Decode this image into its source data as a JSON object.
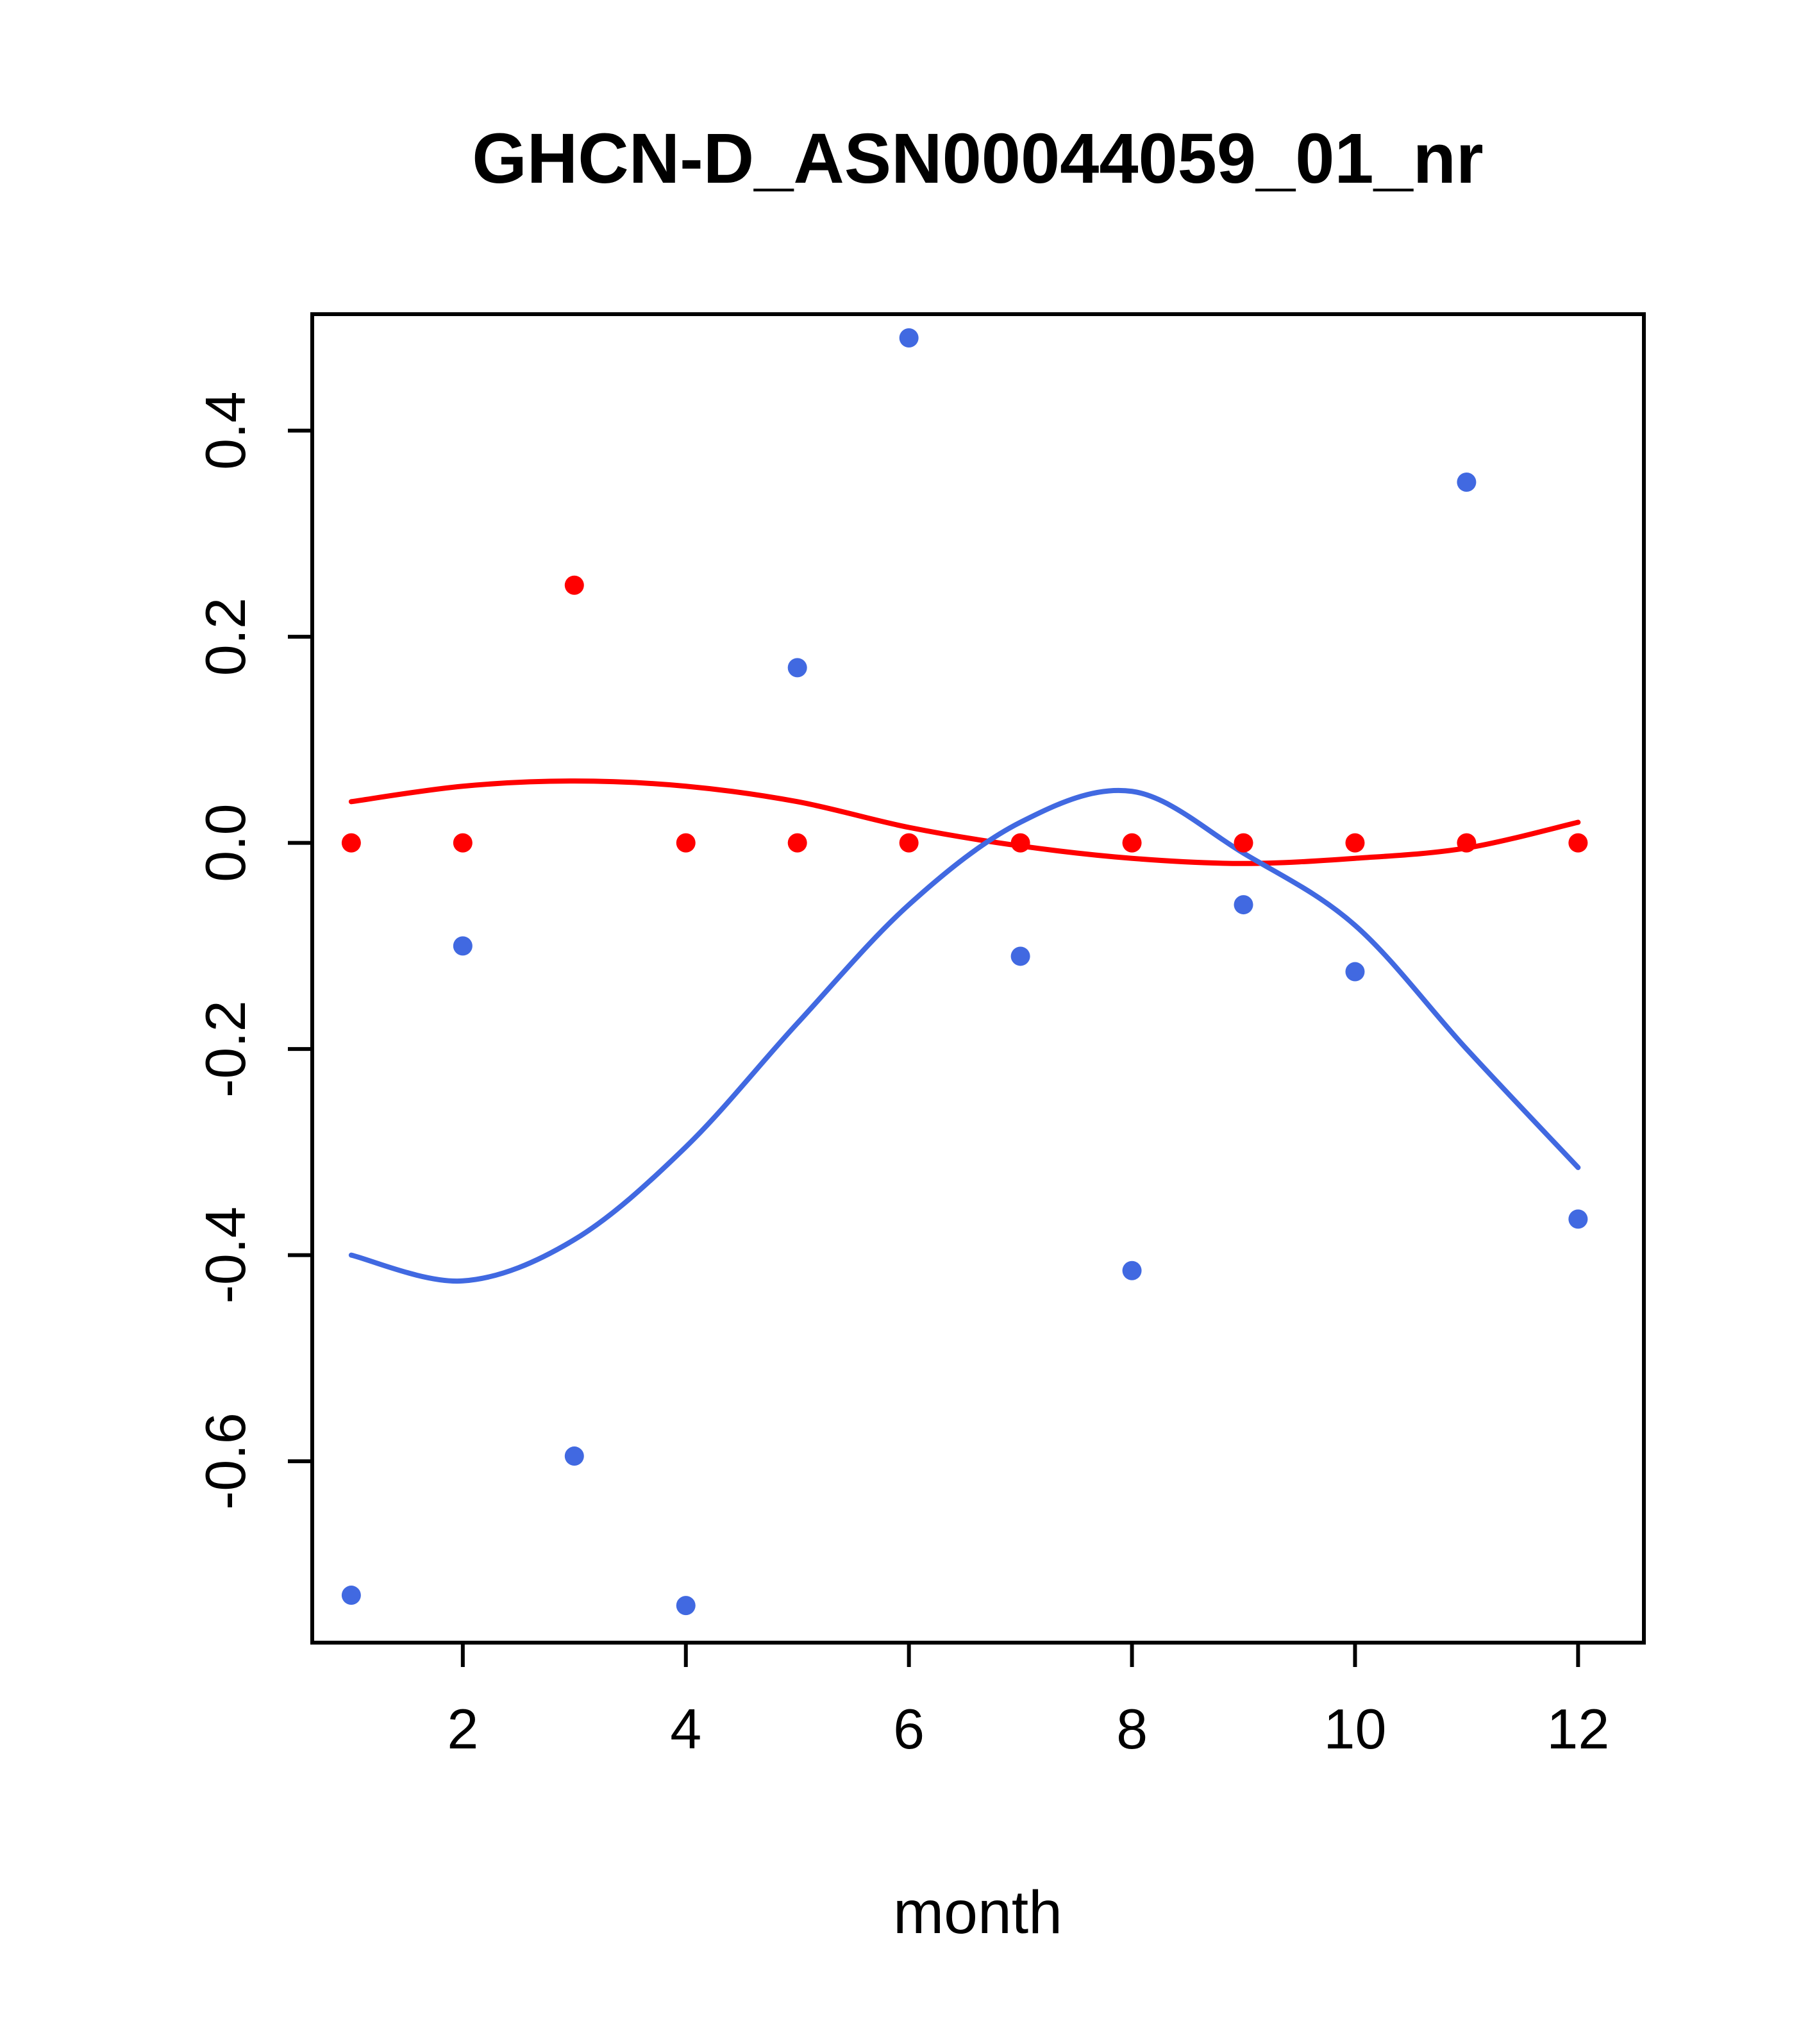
{
  "title": "GHCN-D_ASN00044059_01_nr",
  "chart_data": {
    "type": "scatter",
    "title": "GHCN-D_ASN00044059_01_nr",
    "xlabel": "month",
    "ylabel": "",
    "grid": false,
    "legend": "none",
    "xlim": [
      0.65,
      12.59
    ],
    "ylim": [
      -0.776,
      0.513
    ],
    "xticks": [
      {
        "v": 2,
        "label": "2"
      },
      {
        "v": 4,
        "label": "4"
      },
      {
        "v": 6,
        "label": "6"
      },
      {
        "v": 8,
        "label": "8"
      },
      {
        "v": 10,
        "label": "10"
      },
      {
        "v": 12,
        "label": "12"
      }
    ],
    "yticks": [
      {
        "v": -0.6,
        "label": "-0.6"
      },
      {
        "v": -0.4,
        "label": "-0.4"
      },
      {
        "v": -0.2,
        "label": "-0.2"
      },
      {
        "v": 0.0,
        "label": "0.0"
      },
      {
        "v": 0.2,
        "label": "0.2"
      },
      {
        "v": 0.4,
        "label": "0.4"
      }
    ],
    "colors": {
      "red": "#ff0000",
      "blue": "#4169e1",
      "axis": "#000000",
      "background": "#ffffff"
    },
    "series": [
      {
        "name": "red-smooth-line",
        "kind": "line",
        "color": "#ff0000",
        "x": [
          1,
          2,
          3,
          4,
          5,
          6,
          7,
          8,
          9,
          10,
          11,
          12
        ],
        "y": [
          0.04,
          0.055,
          0.06,
          0.055,
          0.04,
          0.015,
          -0.003,
          -0.015,
          -0.02,
          -0.015,
          -0.005,
          0.02
        ]
      },
      {
        "name": "blue-smooth-line",
        "kind": "line",
        "color": "#4169e1",
        "x": [
          1,
          2,
          3,
          4,
          5,
          6,
          7,
          8,
          9,
          10,
          11,
          12
        ],
        "y": [
          -0.4,
          -0.425,
          -0.385,
          -0.295,
          -0.175,
          -0.06,
          0.02,
          0.05,
          -0.01,
          -0.08,
          -0.2,
          -0.315
        ]
      },
      {
        "name": "red-points",
        "kind": "scatter",
        "color": "#ff0000",
        "x": [
          1,
          2,
          3,
          4,
          5,
          6,
          7,
          8,
          9,
          10,
          11,
          12
        ],
        "y": [
          0.0,
          0.0,
          0.25,
          0.0,
          0.0,
          0.0,
          0.0,
          0.0,
          0.0,
          0.0,
          0.0,
          0.0
        ]
      },
      {
        "name": "blue-points",
        "kind": "scatter",
        "color": "#4169e1",
        "x": [
          1,
          2,
          3,
          4,
          5,
          6,
          7,
          8,
          9,
          10,
          11,
          12
        ],
        "y": [
          -0.73,
          -0.1,
          -0.595,
          -0.74,
          0.17,
          0.49,
          -0.11,
          -0.415,
          -0.06,
          -0.125,
          0.35,
          -0.365
        ]
      }
    ]
  }
}
